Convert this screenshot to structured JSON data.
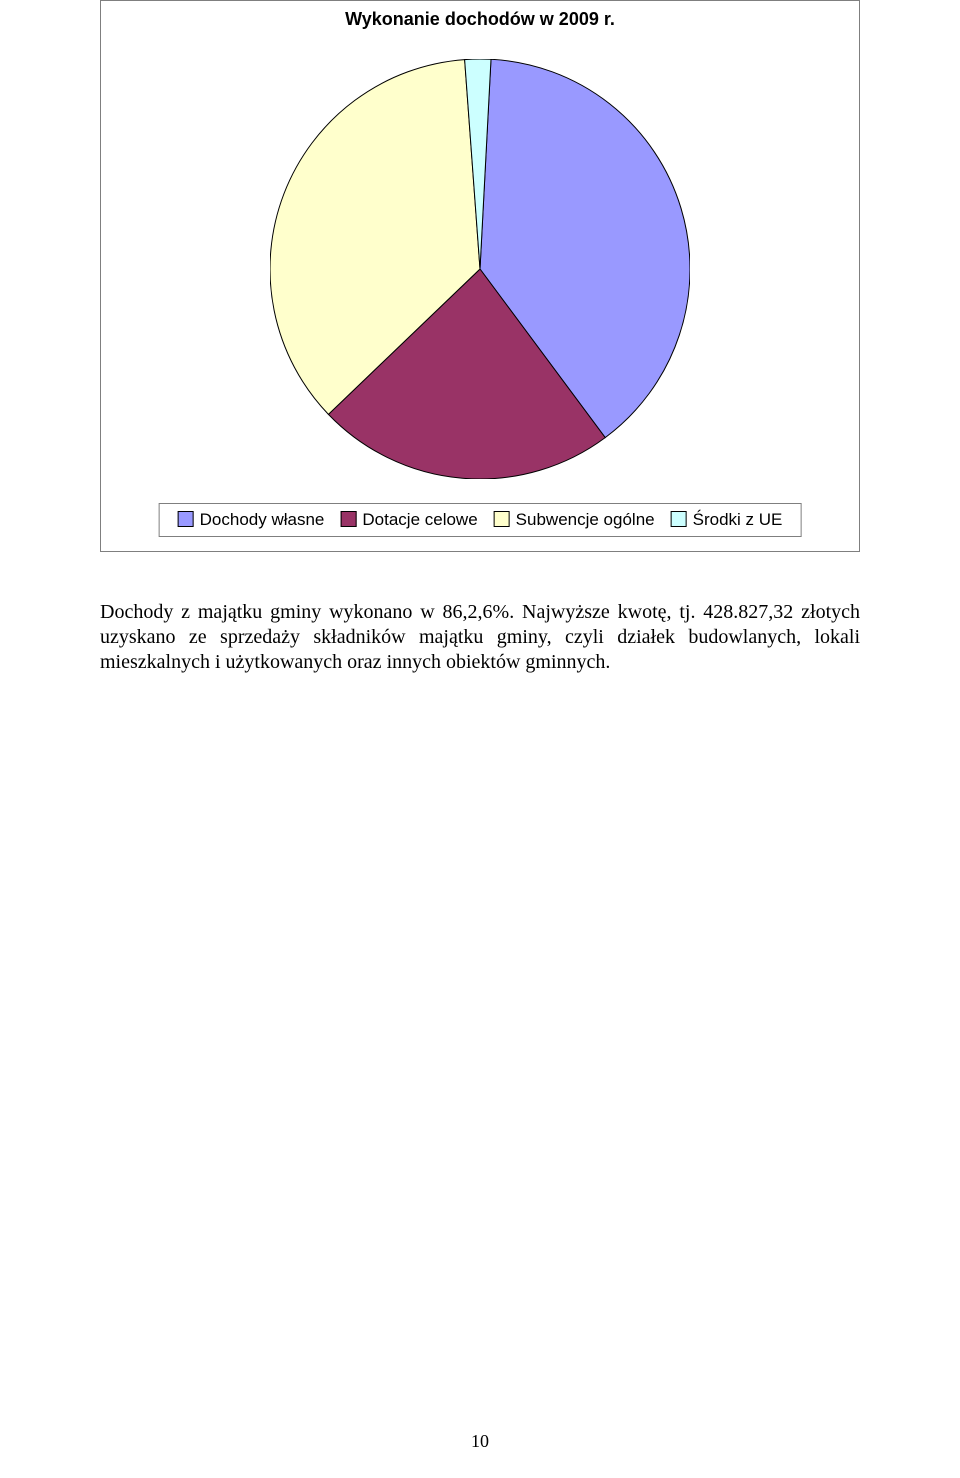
{
  "chart": {
    "type": "pie",
    "title": "Wykonanie dochodów w 2009 r.",
    "title_fontsize": 18,
    "title_fontweight": "bold",
    "background_color": "#ffffff",
    "border_color": "#7f7f7f",
    "stroke_color": "#000000",
    "stroke_width": 1,
    "radius": 210,
    "slices": [
      {
        "label": "Dochody własne",
        "value": 39.0,
        "color": "#9999ff"
      },
      {
        "label": "Dotacje celowe",
        "value": 23.0,
        "color": "#993366"
      },
      {
        "label": "Subwencje ogólne",
        "value": 36.0,
        "color": "#ffffcc"
      },
      {
        "label": "Środki z UE",
        "value": 2.0,
        "color": "#ccffff"
      }
    ],
    "start_angle_deg": -87,
    "legend": {
      "border_color": "#7f7f7f",
      "fontsize": 17,
      "items": [
        {
          "label": "Dochody własne",
          "color": "#9999ff"
        },
        {
          "label": "Dotacje celowe",
          "color": "#993366"
        },
        {
          "label": "Subwencje ogólne",
          "color": "#ffffcc"
        },
        {
          "label": "Środki z UE",
          "color": "#ccffff"
        }
      ]
    }
  },
  "paragraph": "Dochody z majątku gminy wykonano w 86,2,6%. Najwyższe kwotę, tj. 428.827,32 złotych uzyskano ze  sprzedaży składników majątku gminy, czyli działek budowlanych, lokali mieszkalnych i użytkowanych oraz innych obiektów gminnych.",
  "page_number": "10"
}
